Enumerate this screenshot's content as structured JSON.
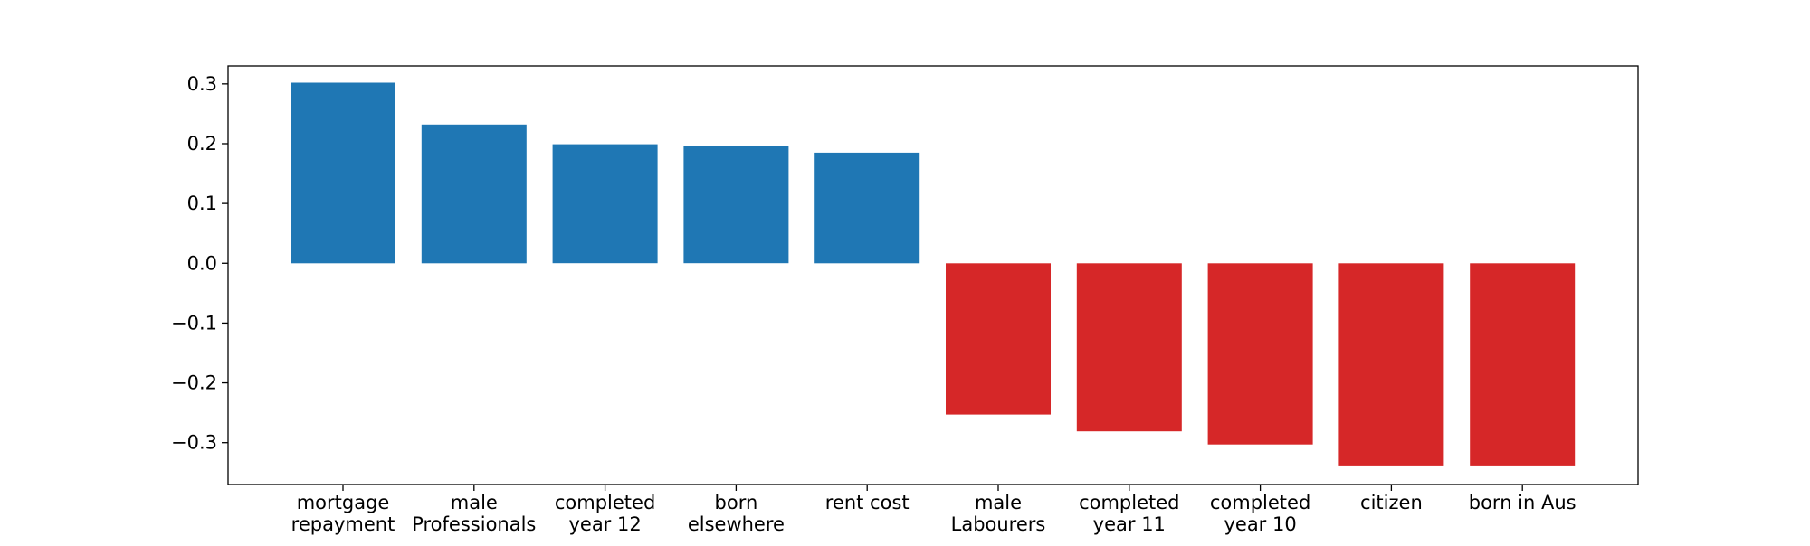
{
  "chart_data": {
    "type": "bar",
    "categories": [
      "mortgage\nrepayment",
      "male\nProfessionals",
      "completed\nyear 12",
      "born\nelsewhere",
      "rent cost",
      "male\nLabourers",
      "completed\nyear 11",
      "completed\nyear 10",
      "citizen",
      "born in Aus"
    ],
    "values": [
      0.302,
      0.232,
      0.199,
      0.196,
      0.185,
      -0.253,
      -0.281,
      -0.303,
      -0.338,
      -0.338
    ],
    "ylim": [
      -0.37,
      0.33
    ],
    "yticks": [
      "0.3",
      "0.2",
      "0.1",
      "0.0",
      "−0.1",
      "−0.2",
      "−0.3"
    ],
    "ytick_values": [
      0.3,
      0.2,
      0.1,
      0.0,
      -0.1,
      -0.2,
      -0.3
    ],
    "colors": {
      "positive": "#1f77b4",
      "negative": "#d62728"
    },
    "grid": false,
    "legend": "none"
  }
}
